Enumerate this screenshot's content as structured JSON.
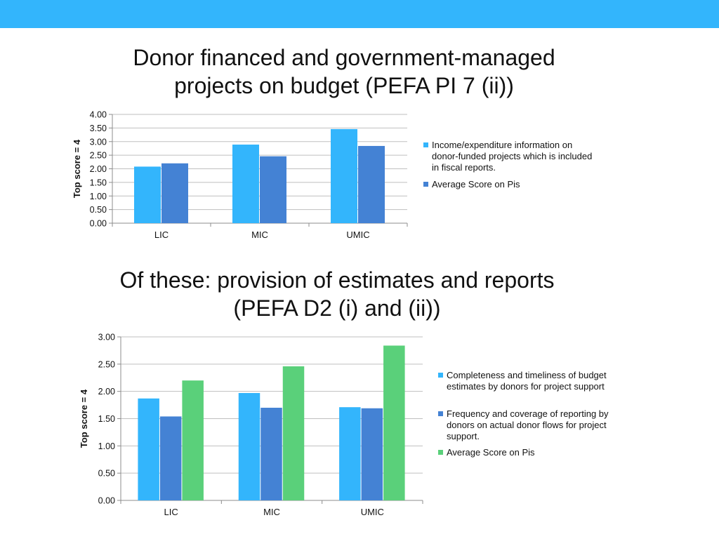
{
  "colors": {
    "header_bar": "#33b5fc",
    "light_blue": "#33b5fc",
    "dark_blue": "#4482d4",
    "green": "#5ad07a",
    "gridline": "#bfbfbf",
    "axis": "#8c8c8c"
  },
  "chart_data": [
    {
      "type": "bar",
      "title_lines": [
        "Donor financed and government-managed",
        "projects on budget (PEFA PI 7 (ii))"
      ],
      "ylabel": "Top score = 4",
      "xlabel": "",
      "categories": [
        "LIC",
        "MIC",
        "UMIC"
      ],
      "ylim": [
        0,
        4
      ],
      "yticks": [
        "0.00",
        "0.50",
        "1.00",
        "1.50",
        "2.00",
        "2.50",
        "3.00",
        "3.50",
        "4.00"
      ],
      "grid": true,
      "legend_position": "right",
      "series": [
        {
          "name": "Income/expenditure information on donor-funded projects which is included in fiscal reports.",
          "color": "#33b5fc",
          "values": [
            2.08,
            2.89,
            3.46
          ]
        },
        {
          "name": "Average Score on Pis",
          "color": "#4482d4",
          "values": [
            2.2,
            2.46,
            2.84
          ]
        }
      ]
    },
    {
      "type": "bar",
      "title_lines": [
        "Of these: provision of estimates and reports",
        "(PEFA D2 (i) and (ii))"
      ],
      "ylabel": "Top score = 4",
      "xlabel": "",
      "categories": [
        "LIC",
        "MIC",
        "UMIC"
      ],
      "ylim": [
        0,
        3
      ],
      "yticks": [
        "0.00",
        "0.50",
        "1.00",
        "1.50",
        "2.00",
        "2.50",
        "3.00"
      ],
      "grid": true,
      "legend_position": "right",
      "series": [
        {
          "name": "Completeness and timeliness of budget estimates by donors for project support",
          "color": "#33b5fc",
          "values": [
            1.87,
            1.97,
            1.71
          ]
        },
        {
          "name": "Frequency and coverage of reporting by donors on actual donor flows for project support.",
          "color": "#4482d4",
          "values": [
            1.54,
            1.7,
            1.69
          ]
        },
        {
          "name": "Average Score on Pis",
          "color": "#5ad07a",
          "values": [
            2.2,
            2.46,
            2.84
          ]
        }
      ]
    }
  ]
}
